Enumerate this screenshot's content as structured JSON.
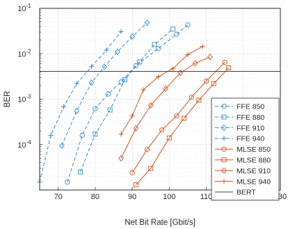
{
  "chart_data": {
    "type": "line",
    "xlabel": "Net Bit Rate [Gbit/s]",
    "ylabel": "BER",
    "x_scale": "linear",
    "y_scale": "log",
    "xlim": [
      65,
      130
    ],
    "ylim": [
      1e-05,
      0.1
    ],
    "xticks": [
      "70",
      "80",
      "90",
      "100",
      "110",
      "120",
      "130"
    ],
    "xtick_values": [
      70,
      80,
      90,
      100,
      110,
      120,
      130
    ],
    "yticks": [
      {
        "base": "10",
        "exp": "-1",
        "value": 0.1
      },
      {
        "base": "10",
        "exp": "-2",
        "value": 0.01
      },
      {
        "base": "10",
        "exp": "-3",
        "value": 0.001
      },
      {
        "base": "10",
        "exp": "-4",
        "value": 0.0001
      }
    ],
    "grid": "on",
    "legend_location": "bottom-right",
    "colors": {
      "ffe": "#2b8cd6",
      "mlse": "#d9501c",
      "bert": "#404040"
    },
    "series": [
      {
        "name": "FFE 850",
        "group": "ffe",
        "marker": "circle",
        "x": [
          72.5,
          76.5,
          80,
          83.5,
          87,
          91,
          97,
          102,
          105
        ],
        "y": [
          1.5e-05,
          0.00016,
          0.00062,
          0.0013,
          0.0024,
          0.0055,
          0.013,
          0.027,
          0.043
        ]
      },
      {
        "name": "FFE 880",
        "group": "ffe",
        "marker": "square",
        "x": [
          76,
          80,
          84,
          88,
          92,
          96,
          101
        ],
        "y": [
          2.5e-05,
          0.00017,
          0.00058,
          0.0027,
          0.0066,
          0.016,
          0.035
        ]
      },
      {
        "name": "FFE 910",
        "group": "ffe",
        "marker": "diamond",
        "x": [
          71,
          75,
          79,
          82.5,
          86,
          90,
          94
        ],
        "y": [
          9.5e-05,
          0.00055,
          0.0023,
          0.0052,
          0.011,
          0.024,
          0.048
        ]
      },
      {
        "name": "FFE 940",
        "group": "ffe",
        "marker": "plus",
        "x": [
          65,
          68,
          71.5,
          75,
          79,
          83,
          87
        ],
        "y": [
          1.5e-05,
          0.00016,
          0.00068,
          0.0022,
          0.0052,
          0.012,
          0.031
        ]
      },
      {
        "name": "MLSE 850",
        "group": "mlse",
        "marker": "circle",
        "x": [
          90,
          94,
          98,
          102,
          106,
          110,
          115
        ],
        "y": [
          2.4e-05,
          7.8e-05,
          0.00021,
          0.00043,
          0.0011,
          0.0025,
          0.0065
        ]
      },
      {
        "name": "MLSE 880",
        "group": "mlse",
        "marker": "square",
        "x": [
          91,
          95,
          100,
          104,
          108,
          112,
          116
        ],
        "y": [
          1.3e-05,
          3e-05,
          0.00014,
          0.00038,
          0.00095,
          0.0022,
          0.0049
        ]
      },
      {
        "name": "MLSE 910",
        "group": "mlse",
        "marker": "diamond",
        "x": [
          87,
          91,
          95,
          99,
          103,
          107,
          111
        ],
        "y": [
          5e-05,
          0.00023,
          0.00073,
          0.0017,
          0.0038,
          0.0062,
          0.0085
        ]
      },
      {
        "name": "MLSE 940",
        "group": "mlse",
        "marker": "plus",
        "x": [
          87,
          90,
          93,
          97,
          101,
          105,
          109
        ],
        "y": [
          0.00017,
          0.00043,
          0.0016,
          0.0031,
          0.0047,
          0.0096,
          0.0145
        ]
      }
    ],
    "reference_lines": [
      {
        "name": "BERT",
        "group": "bert",
        "y": 0.0041
      }
    ]
  }
}
